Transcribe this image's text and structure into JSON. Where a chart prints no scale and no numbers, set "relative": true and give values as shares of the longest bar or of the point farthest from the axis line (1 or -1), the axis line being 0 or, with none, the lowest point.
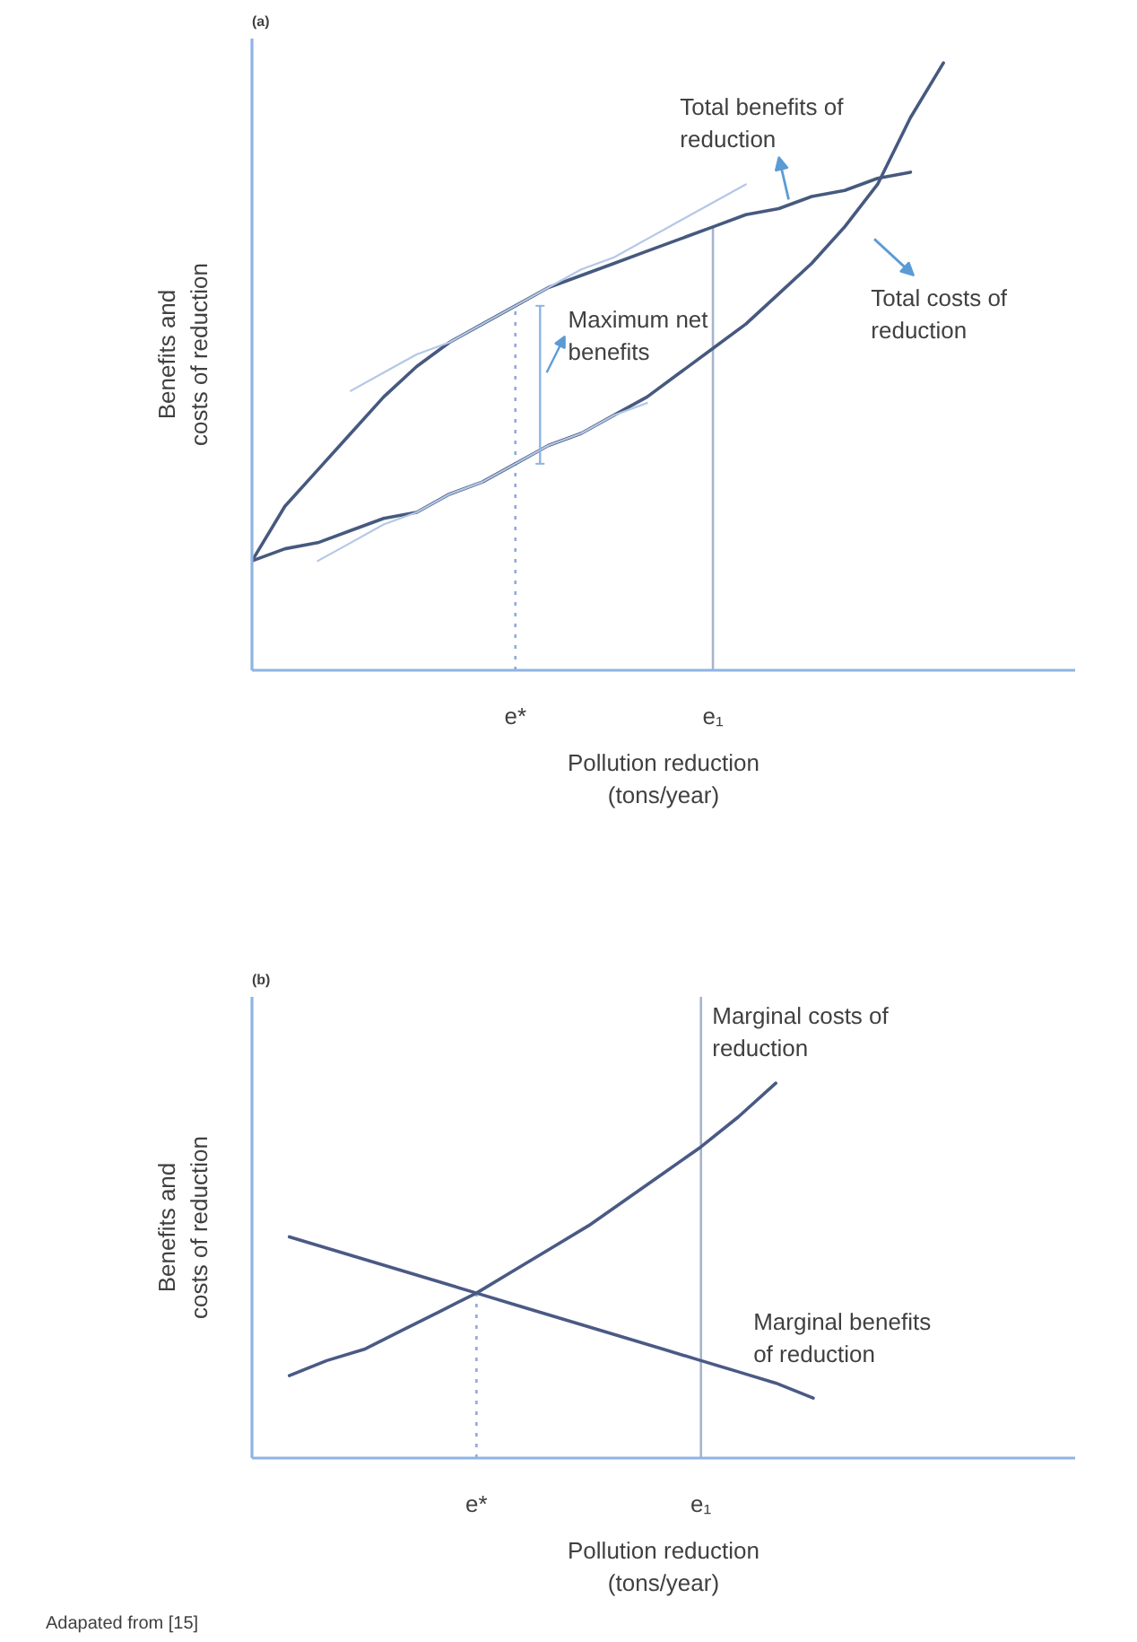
{
  "chart_data": [
    {
      "type": "line",
      "title": "(a)",
      "xlabel": "Pollution reduction (tons/year)",
      "ylabel": "Benefits and costs of reduction",
      "relative": true,
      "line_style": "solid",
      "categories": [
        null,
        null,
        null,
        null,
        null,
        null,
        null,
        null,
        "e*",
        null,
        null,
        null,
        null,
        null,
        "e₁",
        null,
        null,
        null,
        null,
        null,
        null,
        null,
        null,
        null,
        null,
        null
      ],
      "series": [
        {
          "name": "Total benefits of reduction",
          "color": "#46597f",
          "values": [
            0.18,
            0.27,
            0.33,
            0.39,
            0.45,
            0.5,
            0.54,
            0.57,
            0.6,
            0.63,
            0.65,
            0.67,
            0.69,
            0.71,
            0.73,
            0.75,
            0.76,
            0.78,
            0.79,
            0.81,
            0.82,
            null,
            null,
            null,
            null,
            null
          ]
        },
        {
          "name": "Total costs of reduction",
          "color": "#46597f",
          "values": [
            0.18,
            0.2,
            0.21,
            0.23,
            0.25,
            0.26,
            0.29,
            0.31,
            0.34,
            0.37,
            0.39,
            0.42,
            0.45,
            0.49,
            0.53,
            0.57,
            0.62,
            0.67,
            0.73,
            0.8,
            0.91,
            1,
            null,
            null,
            null,
            null
          ]
        },
        {
          "color": "#b4c7e7",
          "values": [
            null,
            null,
            null,
            0.46,
            0.49,
            0.52,
            0.54,
            0.57,
            0.6,
            0.63,
            0.66,
            0.68,
            0.71,
            0.74,
            0.77,
            0.8,
            null,
            null,
            null,
            null,
            null,
            null,
            null,
            null,
            null,
            null
          ]
        },
        {
          "color": "#b4c7e7",
          "values": [
            null,
            null,
            0.18,
            0.21,
            0.24,
            0.26,
            0.29,
            0.31,
            0.34,
            0.37,
            0.39,
            0.42,
            0.44,
            null,
            null,
            null,
            null,
            null,
            null,
            null,
            null,
            null,
            null,
            null,
            null,
            null
          ]
        }
      ],
      "ref_lines": [
        {
          "axis": "x",
          "value": "e*",
          "line_style": "dotted",
          "color": "#8faadc"
        },
        {
          "axis": "x",
          "value": "e₁",
          "line_style": "solid",
          "color": "#a6b5cc"
        }
      ],
      "annotations": [
        {
          "text": "Maximum net benefits",
          "x": "e*",
          "y": 0.47
        }
      ]
    },
    {
      "type": "line",
      "title": "(b)",
      "xlabel": "Pollution reduction (tons/year)",
      "ylabel": "Benefits and costs of reduction",
      "relative": true,
      "line_style": "solid",
      "categories": [
        null,
        null,
        null,
        null,
        null,
        null,
        "e*",
        null,
        null,
        null,
        null,
        null,
        "e₁",
        null,
        null,
        null,
        null,
        null,
        null,
        null,
        null,
        null,
        null
      ],
      "series": [
        {
          "name": "Marginal costs of reduction",
          "color": "#4a5a85",
          "values": [
            null,
            0.22,
            0.26,
            0.29,
            0.34,
            0.39,
            0.44,
            0.5,
            0.56,
            0.62,
            0.69,
            0.76,
            0.83,
            0.91,
            1,
            null,
            null,
            null,
            null,
            null,
            null,
            null,
            null
          ]
        },
        {
          "name": "Marginal benefits of reduction",
          "color": "#4a5a85",
          "values": [
            null,
            0.59,
            0.56,
            0.53,
            0.5,
            0.47,
            0.44,
            0.41,
            0.38,
            0.35,
            0.32,
            0.29,
            0.26,
            0.23,
            0.2,
            0.16,
            null,
            null,
            null,
            null,
            null,
            null,
            null
          ]
        }
      ],
      "ref_lines": [
        {
          "axis": "x",
          "value": "e*",
          "line_style": "dotted",
          "color": "#8faadc"
        },
        {
          "axis": "x",
          "value": "e₁",
          "line_style": "solid",
          "color": "#a6b5cc"
        }
      ],
      "annotations": [
        "Adapated from [15]"
      ]
    }
  ]
}
